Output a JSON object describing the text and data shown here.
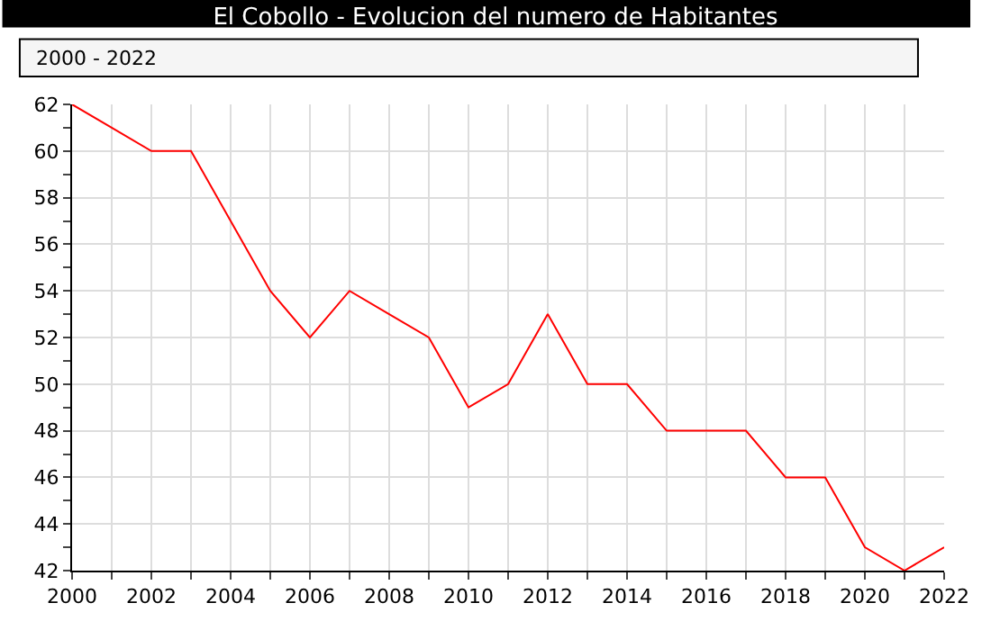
{
  "chart_data": {
    "type": "line",
    "title": "El Cobollo - Evolucion del numero de Habitantes",
    "subtitle": "2000 - 2022",
    "x": [
      2000,
      2001,
      2002,
      2003,
      2004,
      2005,
      2006,
      2007,
      2008,
      2009,
      2010,
      2011,
      2012,
      2013,
      2014,
      2015,
      2016,
      2017,
      2018,
      2019,
      2020,
      2021,
      2022
    ],
    "series": [
      {
        "color": "#ff0000",
        "values": [
          62,
          61,
          60,
          60,
          57,
          54,
          52,
          54,
          53,
          52,
          49,
          50,
          53,
          50,
          50,
          48,
          48,
          48,
          46,
          46,
          43,
          42,
          43
        ]
      }
    ],
    "xlim": [
      2000,
      2022
    ],
    "xticks": [
      2000,
      2002,
      2004,
      2006,
      2008,
      2010,
      2012,
      2014,
      2016,
      2018,
      2020,
      2022
    ],
    "ylim": [
      42,
      62
    ],
    "yticks": [
      42,
      44,
      46,
      48,
      50,
      52,
      54,
      56,
      58,
      60,
      62
    ],
    "grid": true,
    "marker": "none",
    "line_style": "solid"
  }
}
